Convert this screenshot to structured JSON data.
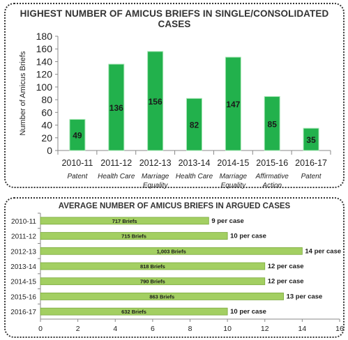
{
  "chart_data": [
    {
      "type": "bar",
      "title": "HIGHEST NUMBER OF AMICUS BRIEFS IN SINGLE/CONSOLIDATED CASES",
      "ylabel": "Number of Amicus Briefs",
      "xlabel": "",
      "ylim": [
        0,
        180
      ],
      "yticks": [
        0,
        20,
        40,
        60,
        80,
        100,
        120,
        140,
        160,
        180
      ],
      "grid": false,
      "categories": [
        "2010-11",
        "2011-12",
        "2012-13",
        "2013-14",
        "2014-15",
        "2015-16",
        "2016-17"
      ],
      "subcategories": [
        "Patent",
        "Health Care",
        "Marriage Equality",
        "Health Care",
        "Marriage Equality",
        "Affirmative Action",
        "Patent"
      ],
      "values": [
        49,
        136,
        156,
        82,
        147,
        85,
        35
      ],
      "data_labels": [
        "49",
        "136",
        "156",
        "82",
        "147",
        "85",
        "35"
      ],
      "colors": {
        "bar": "#22b14c",
        "bar_edge": "#a6e6b4"
      }
    },
    {
      "type": "bar",
      "orientation": "horizontal",
      "title": "AVERAGE NUMBER OF AMICUS BRIEFS IN ARGUED CASES",
      "xlabel": "",
      "ylabel": "",
      "xlim": [
        0,
        16
      ],
      "xticks": [
        0,
        2,
        4,
        6,
        8,
        10,
        12,
        14,
        16
      ],
      "grid": false,
      "categories": [
        "2010-11",
        "2011-12",
        "2012-13",
        "2013-14",
        "2014-15",
        "2015-16",
        "2016-17"
      ],
      "values": [
        9,
        10,
        14,
        12,
        12,
        13,
        10
      ],
      "inner_labels": [
        "717 Briefs",
        "715 Briefs",
        "1,003 Briefs",
        "818 Briefs",
        "790 Briefs",
        "863 Briefs",
        "632 Briefs"
      ],
      "end_labels": [
        "9 per case",
        "10 per case",
        "14 per case",
        "12 per case",
        "12 per case",
        "13 per case",
        "10 per case"
      ],
      "colors": {
        "bar": "#a3cf62",
        "bar_edge": "#7aa83c"
      }
    }
  ]
}
